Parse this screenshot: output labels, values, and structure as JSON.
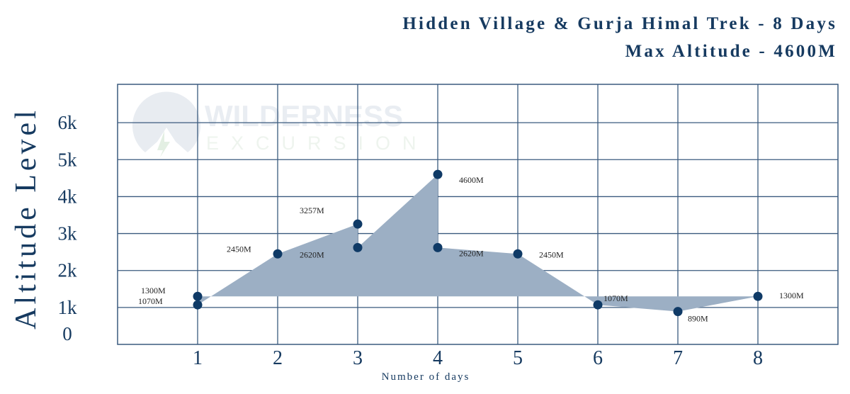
{
  "chart_data": {
    "type": "area",
    "title": "Hidden Village & Gurja Himal Trek - 8 Days",
    "subtitle": "Max Altitude - 4600M",
    "xlabel": "Number of days",
    "ylabel": "Altitude Level",
    "xlim": [
      0,
      9
    ],
    "ylim": [
      0,
      7000
    ],
    "x_ticks": [
      1,
      2,
      3,
      4,
      5,
      6,
      7,
      8
    ],
    "x_tick_labels": [
      "1",
      "2",
      "3",
      "4",
      "5",
      "6",
      "7",
      "8"
    ],
    "y_ticks": [
      0,
      1000,
      2000,
      3000,
      4000,
      5000,
      6000
    ],
    "y_tick_labels": [
      "0",
      "1k",
      "2k",
      "3k",
      "4k",
      "5k",
      "6k"
    ],
    "grid": true,
    "fill_baseline": 1300,
    "points": [
      {
        "x": 1,
        "y": 1300,
        "label": "1300M"
      },
      {
        "x": 1,
        "y": 1070,
        "label": "1070M"
      },
      {
        "x": 2,
        "y": 2450,
        "label": "2450M"
      },
      {
        "x": 3,
        "y": 3257,
        "label": "3257M"
      },
      {
        "x": 3,
        "y": 2620,
        "label": "2620M"
      },
      {
        "x": 4,
        "y": 4600,
        "label": "4600M"
      },
      {
        "x": 4,
        "y": 2620,
        "label": "2620M"
      },
      {
        "x": 5,
        "y": 2450,
        "label": "2450M"
      },
      {
        "x": 6,
        "y": 1070,
        "label": "1070M"
      },
      {
        "x": 7,
        "y": 890,
        "label": "890M"
      },
      {
        "x": 8,
        "y": 1300,
        "label": "1300M"
      }
    ],
    "colors": {
      "marker": "#0f3a66",
      "fill": "#9cafc4",
      "grid": "#3a5a7e",
      "text": "#163a60"
    }
  },
  "watermark": {
    "line1": "WILDERNESS",
    "line2": "EXCURSION"
  }
}
